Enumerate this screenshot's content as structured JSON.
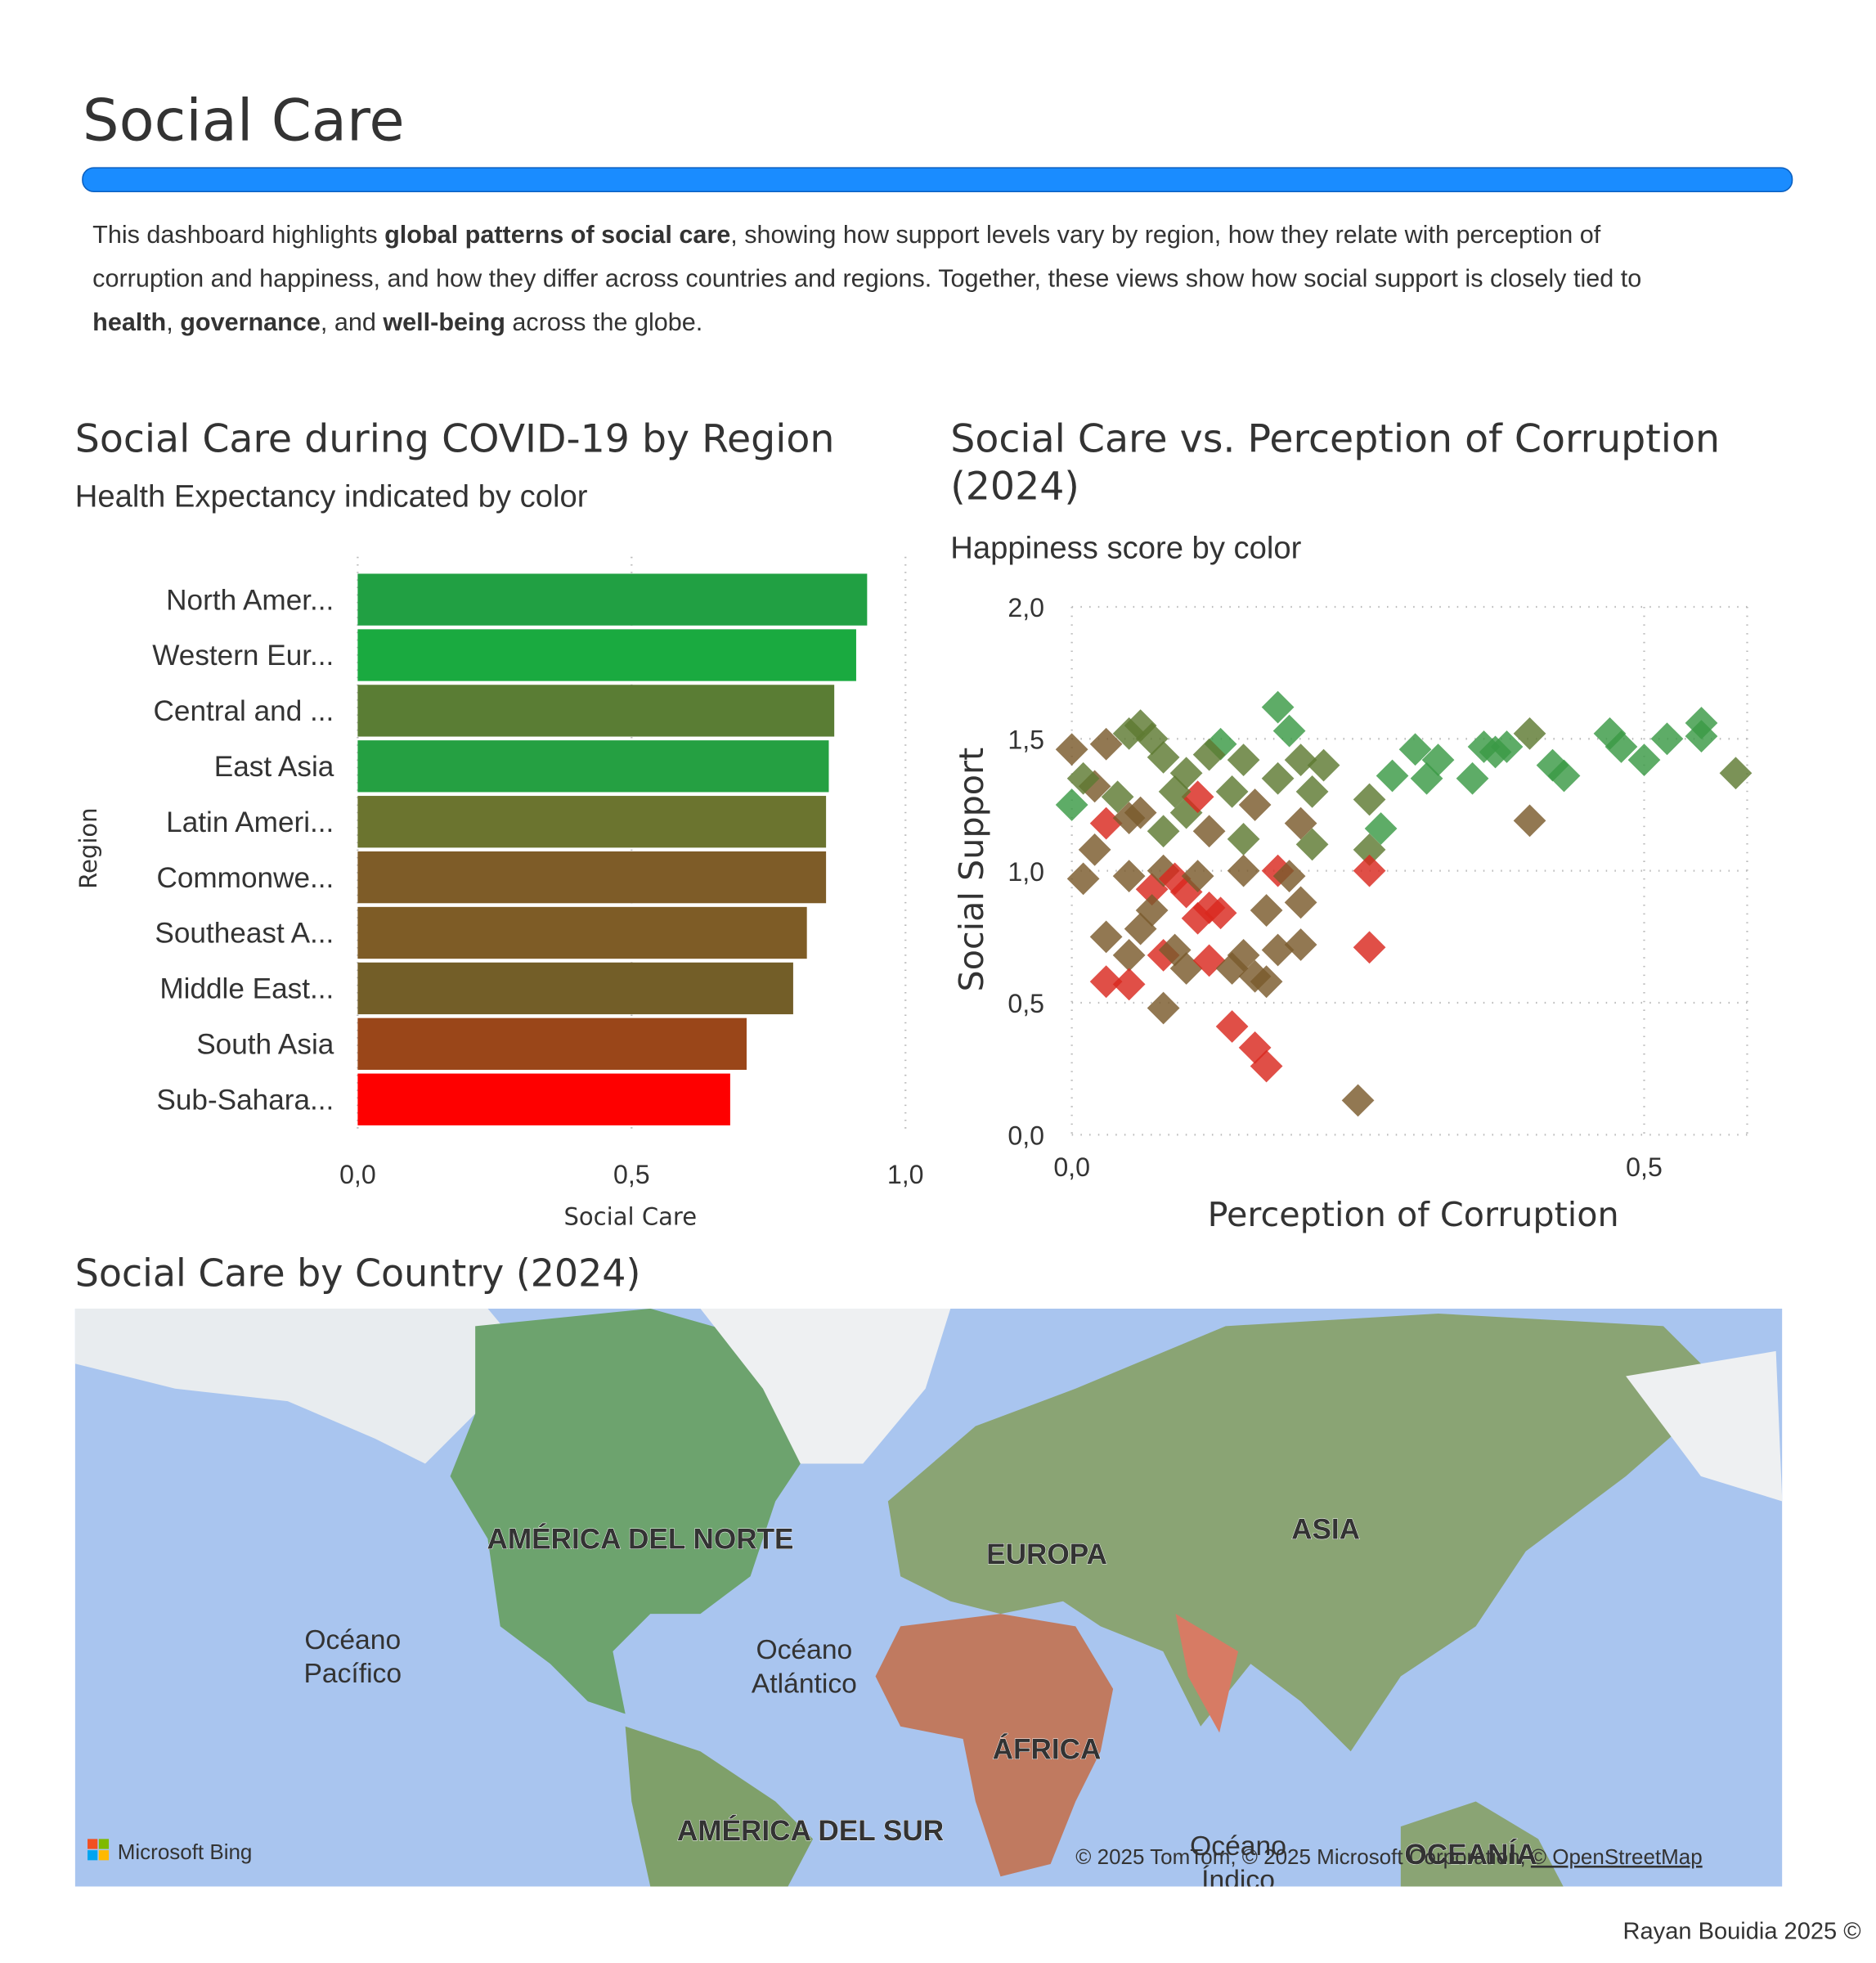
{
  "header": {
    "title": "Social Care"
  },
  "description": [
    [
      {
        "text": "This dashboard highlights ",
        "bold": false
      },
      {
        "text": "global patterns of social care",
        "bold": true
      },
      {
        "text": ", showing how support levels vary by region, how they relate with perception of",
        "bold": false
      }
    ],
    [
      {
        "text": "corruption and happiness, and how they differ across countries and regions. Together, these views show how social support is closely tied to",
        "bold": false
      }
    ],
    [
      {
        "text": "health",
        "bold": true
      },
      {
        "text": ", ",
        "bold": false
      },
      {
        "text": "governance",
        "bold": true
      },
      {
        "text": ", and ",
        "bold": false
      },
      {
        "text": "well-being",
        "bold": true
      },
      {
        "text": " across the globe.",
        "bold": false
      }
    ]
  ],
  "chart_data": [
    {
      "type": "bar",
      "orientation": "horizontal",
      "title": "Social Care during COVID-19 by Region",
      "subtitle": "Health Expectancy indicated by color",
      "x_label": "Social Care",
      "y_label": "Region",
      "categories": [
        "North Amer...",
        "Western Eur...",
        "Central and ...",
        "East Asia",
        "Latin Ameri...",
        "Commonwe...",
        "Southeast A...",
        "Middle East...",
        "South Asia",
        "Sub-Sahara..."
      ],
      "values": [
        0.93,
        0.91,
        0.87,
        0.86,
        0.855,
        0.855,
        0.82,
        0.795,
        0.71,
        0.68
      ],
      "colors": [
        "#21a043",
        "#1aaa40",
        "#5a7d34",
        "#25a042",
        "#6b742f",
        "#7e5c28",
        "#7e5c26",
        "#735e28",
        "#9a4619",
        "#fe0000"
      ],
      "xlim": [
        0,
        1.0
      ],
      "xticks": [
        {
          "value": 0,
          "label": "0,0"
        },
        {
          "value": 0.5,
          "label": "0,5"
        },
        {
          "value": 1.0,
          "label": "1,0"
        }
      ],
      "grid": true
    },
    {
      "type": "scatter",
      "title": [
        "Social Care vs. Perception of Corruption",
        "(2024)"
      ],
      "subtitle": "Happiness score by color",
      "x_label": "Perception of Corruption",
      "y_label": "Social Support",
      "x": [
        0.36,
        0.37,
        0.38,
        0.35,
        0.32,
        0.3,
        0.31,
        0.28,
        0.4,
        0.42,
        0.43,
        0.47,
        0.48,
        0.5,
        0.52,
        0.55,
        0.55,
        0.58,
        0.4,
        0.18,
        0.19,
        0.13,
        0.15,
        0.0,
        0.03,
        0.05,
        0.06,
        0.07,
        0.08,
        0.02,
        0.04,
        0.06,
        0.08,
        0.1,
        0.12,
        0.14,
        0.16,
        0.18,
        0.2,
        0.21,
        0.22,
        0.2,
        0.21,
        0.0,
        0.01,
        0.1,
        0.12,
        0.15,
        0.26,
        0.26,
        0.27,
        0.03,
        0.05,
        0.02,
        0.01,
        0.05,
        0.07,
        0.08,
        0.09,
        0.1,
        0.11,
        0.12,
        0.13,
        0.11,
        0.07,
        0.06,
        0.05,
        0.03,
        0.08,
        0.09,
        0.1,
        0.12,
        0.14,
        0.15,
        0.16,
        0.17,
        0.18,
        0.2,
        0.2,
        0.17,
        0.18,
        0.19,
        0.26,
        0.26,
        0.03,
        0.05,
        0.08,
        0.14,
        0.16,
        0.17,
        0.25,
        0.11,
        0.09,
        0.15
      ],
      "values": [
        1.47,
        1.45,
        1.47,
        1.35,
        1.42,
        1.46,
        1.35,
        1.36,
        1.52,
        1.4,
        1.36,
        1.52,
        1.47,
        1.42,
        1.5,
        1.56,
        1.51,
        1.37,
        1.19,
        1.62,
        1.53,
        1.48,
        1.42,
        1.46,
        1.48,
        1.52,
        1.55,
        1.5,
        1.43,
        1.32,
        1.28,
        1.22,
        1.15,
        1.37,
        1.44,
        1.3,
        1.25,
        1.35,
        1.42,
        1.3,
        1.4,
        1.18,
        1.1,
        1.25,
        1.35,
        1.22,
        1.15,
        1.12,
        1.27,
        1.08,
        1.16,
        1.18,
        1.2,
        1.08,
        0.97,
        0.98,
        0.93,
        1.0,
        0.97,
        0.92,
        0.82,
        0.86,
        0.84,
        0.98,
        0.85,
        0.78,
        0.68,
        0.75,
        0.68,
        0.7,
        0.63,
        0.66,
        0.63,
        0.68,
        0.6,
        0.58,
        0.7,
        0.72,
        0.88,
        0.85,
        1.0,
        0.98,
        1.0,
        0.71,
        0.58,
        0.57,
        0.48,
        0.41,
        0.33,
        0.26,
        0.13,
        1.28,
        1.3,
        1.0
      ],
      "colors": [
        "#3a9a45",
        "#3a9a45",
        "#3a9a45",
        "#3a9a45",
        "#3a9a45",
        "#3a9a45",
        "#3a9a45",
        "#3a9a45",
        "#5e7a32",
        "#3a9a45",
        "#3a9a45",
        "#3a9a45",
        "#3a9a45",
        "#3a9a45",
        "#3a9a45",
        "#3a9a45",
        "#3a9a45",
        "#5e7a32",
        "#7a5a2c",
        "#3a9a45",
        "#3a9a45",
        "#3a9a45",
        "#5e7a32",
        "#7a5a2c",
        "#7a5a2c",
        "#5e7a32",
        "#5e7a32",
        "#5e7a32",
        "#5e7a32",
        "#7a5a2c",
        "#5e7a32",
        "#7a5a2c",
        "#5e7a32",
        "#5e7a32",
        "#5e7a32",
        "#5e7a32",
        "#7a5a2c",
        "#5e7a32",
        "#5e7a32",
        "#5e7a32",
        "#5e7a32",
        "#7a5a2c",
        "#5e7a32",
        "#3a9a45",
        "#5e7a32",
        "#5e7a32",
        "#7a5a2c",
        "#5e7a32",
        "#5e7a32",
        "#5e7a32",
        "#3a9a45",
        "#d9281e",
        "#7a5a2c",
        "#7a5a2c",
        "#7a5a2c",
        "#7a5a2c",
        "#d9281e",
        "#7a5a2c",
        "#d9281e",
        "#d9281e",
        "#d9281e",
        "#d9281e",
        "#d9281e",
        "#7a5a2c",
        "#7a5a2c",
        "#7a5a2c",
        "#7a5a2c",
        "#7a5a2c",
        "#d9281e",
        "#7a5a2c",
        "#7a5a2c",
        "#d9281e",
        "#7a5a2c",
        "#7a5a2c",
        "#7a5a2c",
        "#7a5a2c",
        "#7a5a2c",
        "#7a5a2c",
        "#7a5a2c",
        "#7a5a2c",
        "#d9281e",
        "#7a5a2c",
        "#d9281e",
        "#d9281e",
        "#d9281e",
        "#d9281e",
        "#7a5a2c",
        "#d9281e",
        "#d9281e",
        "#d9281e",
        "#7a5a2c",
        "#d9281e",
        "#5e7a32",
        "#7a5a2c"
      ],
      "xlim": [
        0,
        0.59
      ],
      "ylim": [
        0,
        2.0
      ],
      "xticks": [
        {
          "value": 0,
          "label": "0,0"
        },
        {
          "value": 0.5,
          "label": "0,5"
        }
      ],
      "yticks": [
        {
          "value": 0,
          "label": "0,0"
        },
        {
          "value": 0.5,
          "label": "0,5"
        },
        {
          "value": 1.0,
          "label": "1,0"
        },
        {
          "value": 1.5,
          "label": "1,5"
        },
        {
          "value": 2.0,
          "label": "2,0"
        }
      ],
      "grid": true
    }
  ],
  "map": {
    "title": "Social Care by Country (2024)",
    "continents": [
      "AMÉRICA DEL NORTE",
      "EUROPA",
      "ASIA",
      "ÁFRICA",
      "AMÉRICA DEL SUR",
      "OCEANÍA"
    ],
    "oceans": [
      [
        "Océano",
        "Pacífico"
      ],
      [
        "Océano",
        "Atlántico"
      ],
      [
        "Océano",
        "Índico"
      ]
    ],
    "logo": "Microsoft Bing",
    "attribution": "© 2025 TomTom, © 2025 Microsoft Corporation,",
    "attribution_link": "© OpenStreetMap"
  },
  "footer": "Rayan Bouidia 2025 ©"
}
